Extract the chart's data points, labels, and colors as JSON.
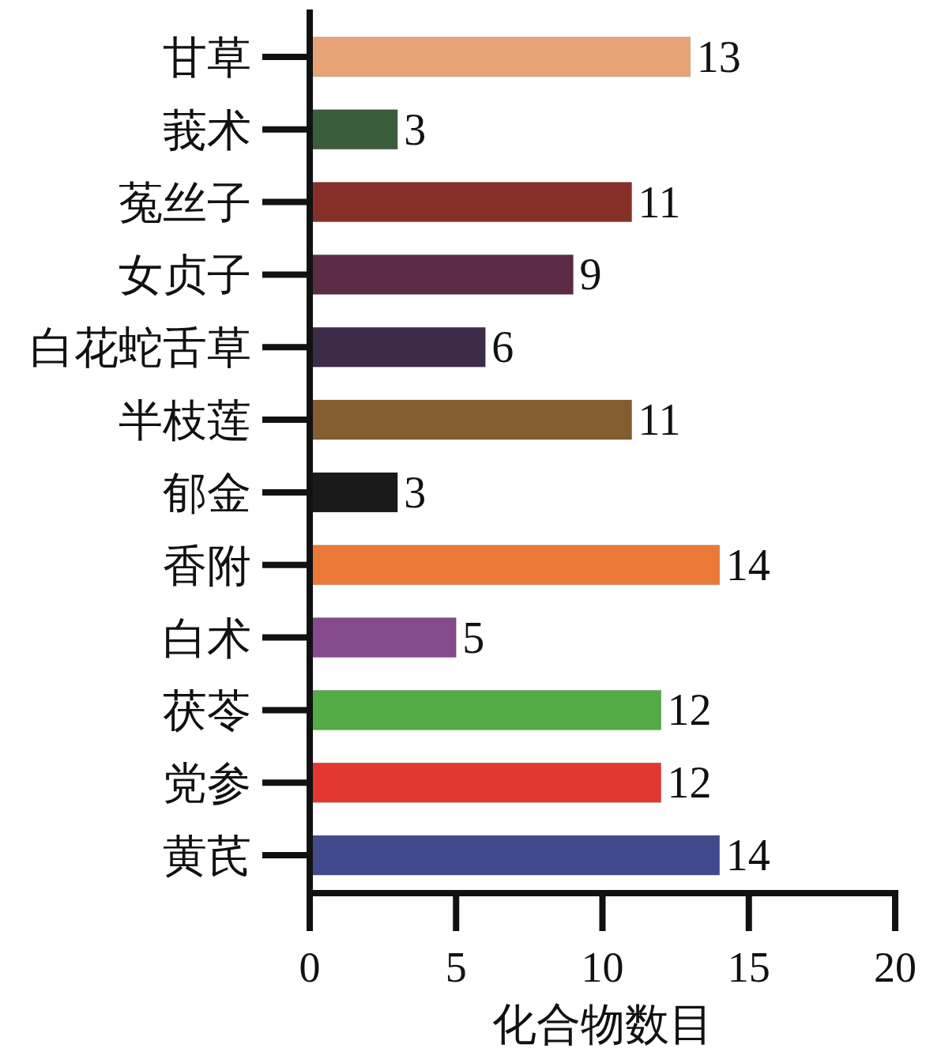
{
  "chart_data": {
    "type": "bar",
    "orientation": "horizontal",
    "xlabel": "化合物数目",
    "categories": [
      "甘草",
      "莪术",
      "菟丝子",
      "女贞子",
      "白花蛇舌草",
      "半枝莲",
      "郁金",
      "香附",
      "白术",
      "茯苓",
      "党参",
      "黄芪"
    ],
    "values": [
      13,
      3,
      11,
      9,
      6,
      11,
      3,
      14,
      5,
      12,
      12,
      14
    ],
    "colors": [
      "#e8a476",
      "#3a5e3a",
      "#862f28",
      "#5c2b45",
      "#3d2c4a",
      "#855b30",
      "#1a1a1a",
      "#ec7838",
      "#844a8c",
      "#52ab44",
      "#e3382f",
      "#424a8d"
    ],
    "xlim": [
      0,
      20
    ],
    "xticks": [
      0,
      5,
      10,
      15,
      20
    ],
    "data_labels": true
  }
}
